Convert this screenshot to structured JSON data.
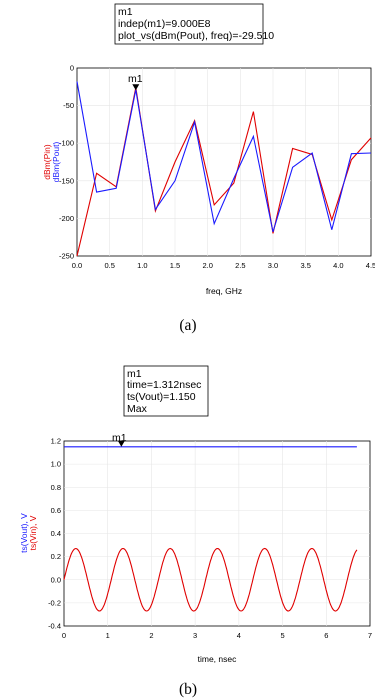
{
  "chart_data": [
    {
      "type": "line",
      "caption": "(a)",
      "xlabel": "freq, GHz",
      "ylabels": [
        "dBm(Pin)",
        "dBm(Pout)"
      ],
      "xlim": [
        0.0,
        4.5
      ],
      "ylim": [
        -250,
        0
      ],
      "xticks": [
        "0.0",
        "0.5",
        "1.0",
        "1.5",
        "2.0",
        "2.5",
        "3.0",
        "3.5",
        "4.0",
        "4.5"
      ],
      "yticks": [
        "0",
        "-50",
        "-100",
        "-150",
        "-200",
        "-250"
      ],
      "colors": {
        "Pin": "#e00000",
        "Pout": "#1a1aff"
      },
      "series": [
        {
          "name": "dBm(Pin)",
          "x": [
            0.0,
            0.3,
            0.6,
            0.9,
            1.2,
            1.5,
            1.8,
            2.1,
            2.4,
            2.7,
            3.0,
            3.3,
            3.6,
            3.9,
            4.2,
            4.5
          ],
          "y": [
            -250,
            -140,
            -158,
            -26,
            -190,
            -125,
            -70,
            -182,
            -153,
            -58,
            -220,
            -107,
            -115,
            -202,
            -122,
            -93
          ]
        },
        {
          "name": "dBm(Pout)",
          "x": [
            0.0,
            0.3,
            0.6,
            0.9,
            1.2,
            1.5,
            1.8,
            2.1,
            2.4,
            2.7,
            3.0,
            3.3,
            3.6,
            3.9,
            4.2,
            4.5
          ],
          "y": [
            -18,
            -165,
            -160,
            -29,
            -188,
            -150,
            -72,
            -207,
            -147,
            -91,
            -218,
            -132,
            -113,
            -215,
            -114,
            -113
          ]
        }
      ],
      "marker": {
        "name": "m1",
        "x": 0.9,
        "y": -29.51,
        "lines": [
          "m1",
          "indep(m1)=9.000E8",
          "plot_vs(dBm(Pout), freq)=-29.510"
        ]
      }
    },
    {
      "type": "line",
      "caption": "(b)",
      "xlabel": "time, nsec",
      "ylabels": [
        "ts(Vout), V",
        "ts(Vin), V"
      ],
      "xlim": [
        0,
        7
      ],
      "ylim": [
        -0.4,
        1.2
      ],
      "xticks": [
        "0",
        "1",
        "2",
        "3",
        "4",
        "5",
        "6",
        "7"
      ],
      "yticks": [
        "1.2",
        "1.0",
        "0.8",
        "0.6",
        "0.4",
        "0.2",
        "0.0",
        "-0.2",
        "-0.4"
      ],
      "colors": {
        "Vout": "#1a1aff",
        "Vin": "#e00000"
      },
      "series": [
        {
          "name": "ts(Vout)",
          "constant": 1.15,
          "x_range": [
            0,
            6.7
          ]
        },
        {
          "name": "ts(Vin)",
          "amplitude": 0.27,
          "period": 1.08,
          "x_range": [
            0,
            6.7
          ]
        }
      ],
      "marker": {
        "name": "m1",
        "x": 1.312,
        "y": 1.15,
        "lines": [
          "m1",
          "time=1.312nsec",
          "ts(Vout)=1.150",
          "Max"
        ]
      }
    }
  ]
}
